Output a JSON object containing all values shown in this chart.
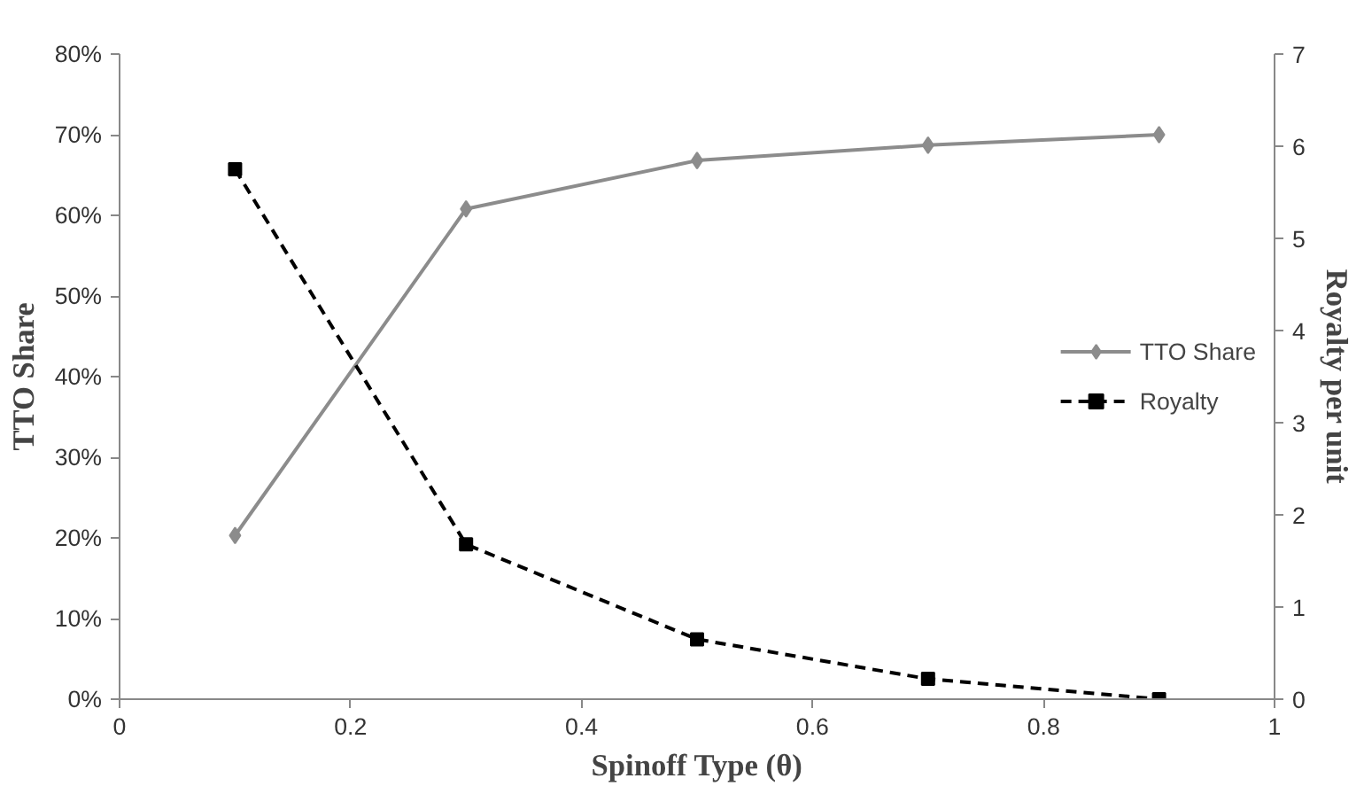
{
  "chart_data": {
    "type": "line",
    "xlabel": "Spinoff Type (θ)",
    "ylabel": "TTO Share",
    "y2label": "Royalty per unit",
    "x": [
      0.1,
      0.3,
      0.5,
      0.7,
      0.9
    ],
    "series": [
      {
        "name": "TTO Share",
        "color": "#8c8c8c",
        "values": [
          20.3,
          60.8,
          66.8,
          68.7,
          70.0
        ],
        "marker": "diamond",
        "line_style": "solid"
      },
      {
        "name": "Royalty",
        "color": "#000000",
        "values": [
          5.75,
          1.68,
          0.65,
          0.22,
          0.0
        ],
        "marker": "square",
        "line_style": "dashed",
        "axis": "y2"
      }
    ],
    "xlim": [
      0,
      1
    ],
    "xticks": [
      0,
      0.2,
      0.4,
      0.6,
      0.8,
      1
    ],
    "ylim": [
      0,
      80
    ],
    "yticks": [
      {
        "value": 0,
        "label": "0%"
      },
      {
        "value": 10,
        "label": "10%"
      },
      {
        "value": 20,
        "label": "20%"
      },
      {
        "value": 30,
        "label": "30%"
      },
      {
        "value": 40,
        "label": "40%"
      },
      {
        "value": 50,
        "label": "50%"
      },
      {
        "value": 60,
        "label": "60%"
      },
      {
        "value": 70,
        "label": "70%"
      },
      {
        "value": 80,
        "label": "80%"
      }
    ],
    "y2lim": [
      0,
      7
    ],
    "y2ticks": [
      0,
      1,
      2,
      3,
      4,
      5,
      6,
      7
    ],
    "legend": "center right",
    "grid": false
  }
}
